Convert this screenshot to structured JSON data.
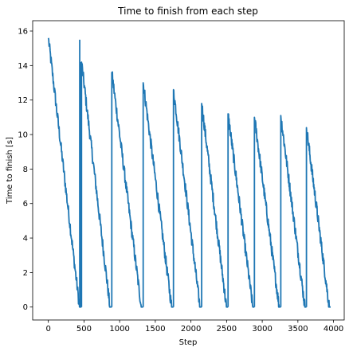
{
  "chart_data": {
    "type": "line",
    "title": "Time to finish from each step",
    "xlabel": "Step",
    "ylabel": "Time to finish [s]",
    "xlim": [
      -220,
      4150
    ],
    "ylim": [
      -0.75,
      16.6
    ],
    "xticks": [
      0,
      500,
      1000,
      1500,
      2000,
      2500,
      3000,
      3500,
      4000
    ],
    "yticks": [
      0,
      2,
      4,
      6,
      8,
      10,
      12,
      14,
      16
    ],
    "grid": false,
    "line_color": "#1f77b4",
    "series": [
      {
        "description": "sawtooth segments: each starts at a peak and decreases to 0",
        "segments": [
          {
            "x_start": 0,
            "x_end": 465,
            "y_start": 15.6,
            "y_end": 0
          },
          {
            "x_start": 465,
            "x_end": 890,
            "y_start": 14.2,
            "y_end": 0
          },
          {
            "x_start": 890,
            "x_end": 1330,
            "y_start": 13.6,
            "y_end": 0
          },
          {
            "x_start": 1330,
            "x_end": 1755,
            "y_start": 13.0,
            "y_end": 0
          },
          {
            "x_start": 1755,
            "x_end": 2150,
            "y_start": 12.6,
            "y_end": 0
          },
          {
            "x_start": 2150,
            "x_end": 2520,
            "y_start": 11.8,
            "y_end": 0
          },
          {
            "x_start": 2520,
            "x_end": 2890,
            "y_start": 11.2,
            "y_end": 0
          },
          {
            "x_start": 2890,
            "x_end": 3260,
            "y_start": 11.0,
            "y_end": 0
          },
          {
            "x_start": 3260,
            "x_end": 3620,
            "y_start": 11.1,
            "y_end": 0
          },
          {
            "x_start": 3620,
            "x_end": 3960,
            "y_start": 10.4,
            "y_end": 0
          }
        ],
        "spikes": [
          {
            "x": 440,
            "y": 15.5
          },
          {
            "x": 455,
            "y": 14.2
          }
        ]
      }
    ]
  }
}
